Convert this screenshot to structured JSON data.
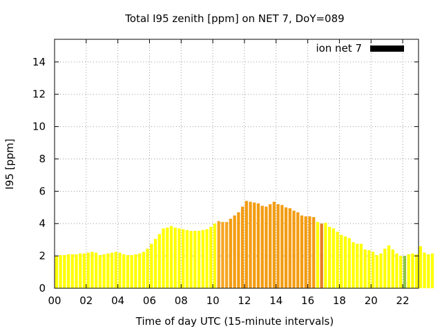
{
  "chart_data": {
    "type": "bar",
    "title": "Total I95 zenith [ppm] on NET 7, DoY=089",
    "xlabel": "Time of day UTC (15-minute intervals)",
    "ylabel": "I95 [ppm]",
    "xlim": [
      0,
      23
    ],
    "ylim": [
      0,
      15.4
    ],
    "x_ticks": [
      "00",
      "02",
      "04",
      "06",
      "08",
      "10",
      "12",
      "14",
      "16",
      "18",
      "20",
      "22"
    ],
    "y_ticks": [
      "0",
      "2",
      "4",
      "6",
      "8",
      "10",
      "12",
      "14"
    ],
    "grid": true,
    "legend": {
      "position": "top-right",
      "entries": [
        {
          "label": "ion net 7",
          "color": "#000000"
        }
      ]
    },
    "interval_hours": 0.25,
    "colors": {
      "low": "#ffff00",
      "mid": "#f5a623",
      "high": "#f39c12",
      "highlight_orange": "#e67e22",
      "highlight_green": "#8bc34a",
      "axis": "#000000",
      "grid": "#999999"
    },
    "series": [
      {
        "values": [
          2.0,
          2.05,
          2.05,
          2.1,
          2.1,
          2.1,
          2.15,
          2.15,
          2.2,
          2.25,
          2.2,
          2.05,
          2.1,
          2.15,
          2.2,
          2.25,
          2.2,
          2.1,
          2.05,
          2.05,
          2.1,
          2.15,
          2.25,
          2.45,
          2.75,
          3.05,
          3.35,
          3.7,
          3.75,
          3.85,
          3.75,
          3.7,
          3.65,
          3.6,
          3.55,
          3.55,
          3.55,
          3.6,
          3.65,
          3.8,
          4.0,
          4.15,
          4.1,
          4.1,
          4.3,
          4.5,
          4.7,
          5.05,
          5.4,
          5.35,
          5.3,
          5.25,
          5.1,
          5.05,
          5.2,
          5.35,
          5.2,
          5.15,
          5.0,
          4.95,
          4.8,
          4.7,
          4.5,
          4.45,
          4.45,
          4.4,
          4.1,
          4.0,
          4.05,
          3.8,
          3.7,
          3.5,
          3.3,
          3.2,
          3.1,
          2.85,
          2.75,
          2.75,
          2.4,
          2.35,
          2.25,
          2.05,
          2.15,
          2.45,
          2.65,
          2.4,
          2.15,
          2.0,
          2.0,
          2.1,
          2.15,
          2.1,
          2.6,
          2.2,
          2.1,
          2.15
        ],
        "colors": [
          "#ffff00",
          "#ffff00",
          "#ffff00",
          "#ffff00",
          "#ffff00",
          "#ffff00",
          "#ffff00",
          "#ffff00",
          "#ffff00",
          "#ffff00",
          "#ffff00",
          "#ffff00",
          "#ffff00",
          "#ffff00",
          "#ffff00",
          "#ffff00",
          "#ffff00",
          "#ffff00",
          "#ffff00",
          "#ffff00",
          "#ffff00",
          "#ffff00",
          "#ffff00",
          "#ffff00",
          "#ffff00",
          "#ffff00",
          "#ffff00",
          "#ffff00",
          "#ffff00",
          "#ffff00",
          "#ffff00",
          "#ffff00",
          "#ffff00",
          "#ffff00",
          "#ffff00",
          "#ffff00",
          "#ffff00",
          "#ffff00",
          "#ffff00",
          "#ffff00",
          "#ffff00",
          "#f5a623",
          "#f5a623",
          "#f5a623",
          "#f39c12",
          "#f39c12",
          "#f39c12",
          "#f39c12",
          "#f39c12",
          "#f39c12",
          "#f39c12",
          "#f39c12",
          "#f39c12",
          "#f39c12",
          "#f39c12",
          "#f39c12",
          "#f39c12",
          "#f39c12",
          "#f39c12",
          "#f39c12",
          "#f39c12",
          "#f39c12",
          "#f39c12",
          "#f39c12",
          "#f39c12",
          "#f39c12",
          "#ffff00",
          "#e67e22",
          "#ffff00",
          "#ffff00",
          "#ffff00",
          "#ffff00",
          "#ffff00",
          "#ffff00",
          "#ffff00",
          "#ffff00",
          "#ffff00",
          "#ffff00",
          "#ffff00",
          "#ffff00",
          "#ffff00",
          "#ffff00",
          "#ffff00",
          "#ffff00",
          "#ffff00",
          "#ffff00",
          "#ffff00",
          "#ffff00",
          "#8bc34a",
          "#ffff00",
          "#ffff00",
          "#ffff00",
          "#ffff00",
          "#ffff00",
          "#ffff00",
          "#ffff00"
        ]
      }
    ]
  }
}
